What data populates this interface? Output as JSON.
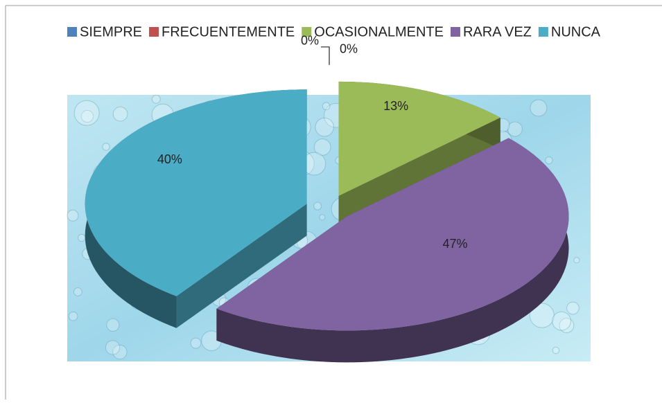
{
  "chart_data": {
    "type": "pie",
    "categories": [
      "SIEMPRE",
      "FRECUENTEMENTE",
      "OCASIONALMENTE",
      "RARA VEZ",
      "NUNCA"
    ],
    "values": [
      0,
      0,
      13,
      47,
      40
    ],
    "value_labels": [
      "0%",
      "0%",
      "13%",
      "47%",
      "40%"
    ],
    "colors": [
      "#4f81bd",
      "#c0504d",
      "#9bbb59",
      "#8064a2",
      "#4bacc6"
    ],
    "legend": "top"
  }
}
